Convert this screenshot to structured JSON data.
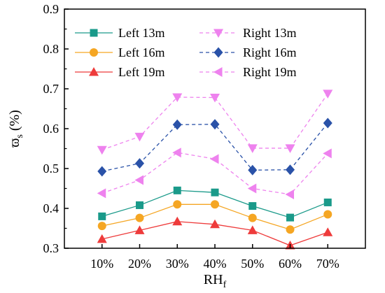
{
  "chart_data": {
    "type": "line",
    "categories": [
      "10%",
      "20%",
      "30%",
      "40%",
      "50%",
      "60%",
      "70%"
    ],
    "xlabel": {
      "main": "RH",
      "sub": "f"
    },
    "ylabel": {
      "main": "ϖ",
      "sub": "s",
      "unit": " (%)"
    },
    "ylim": [
      0.3,
      0.9
    ],
    "yticks": [
      "0.3",
      "0.4",
      "0.5",
      "0.6",
      "0.7",
      "0.8",
      "0.9"
    ],
    "ytick_values": [
      0.3,
      0.4,
      0.5,
      0.6,
      0.7,
      0.8,
      0.9
    ],
    "grid": false,
    "legend_placement": "top",
    "series": [
      {
        "name": "Left 13m",
        "color": "#1a9a8a",
        "marker": "square",
        "dash": false,
        "values": [
          0.38,
          0.408,
          0.445,
          0.44,
          0.406,
          0.377,
          0.415
        ]
      },
      {
        "name": "Left 16m",
        "color": "#f5a623",
        "marker": "circle",
        "dash": false,
        "values": [
          0.356,
          0.376,
          0.41,
          0.41,
          0.376,
          0.347,
          0.385
        ]
      },
      {
        "name": "Left 19m",
        "color": "#ee3b3b",
        "marker": "triangle-up",
        "dash": false,
        "values": [
          0.323,
          0.345,
          0.367,
          0.36,
          0.345,
          0.307,
          0.34
        ]
      },
      {
        "name": "Right 13m",
        "color": "#ee82ee",
        "marker": "triangle-down",
        "dash": true,
        "values": [
          0.547,
          0.58,
          0.679,
          0.678,
          0.551,
          0.551,
          0.688
        ]
      },
      {
        "name": "Right 16m",
        "color": "#2a52a8",
        "marker": "diamond",
        "dash": true,
        "values": [
          0.493,
          0.513,
          0.61,
          0.611,
          0.496,
          0.497,
          0.614
        ]
      },
      {
        "name": "Right 19m",
        "color": "#ee82ee",
        "marker": "triangle-left",
        "dash": true,
        "values": [
          0.438,
          0.471,
          0.54,
          0.524,
          0.45,
          0.435,
          0.538
        ]
      }
    ]
  }
}
